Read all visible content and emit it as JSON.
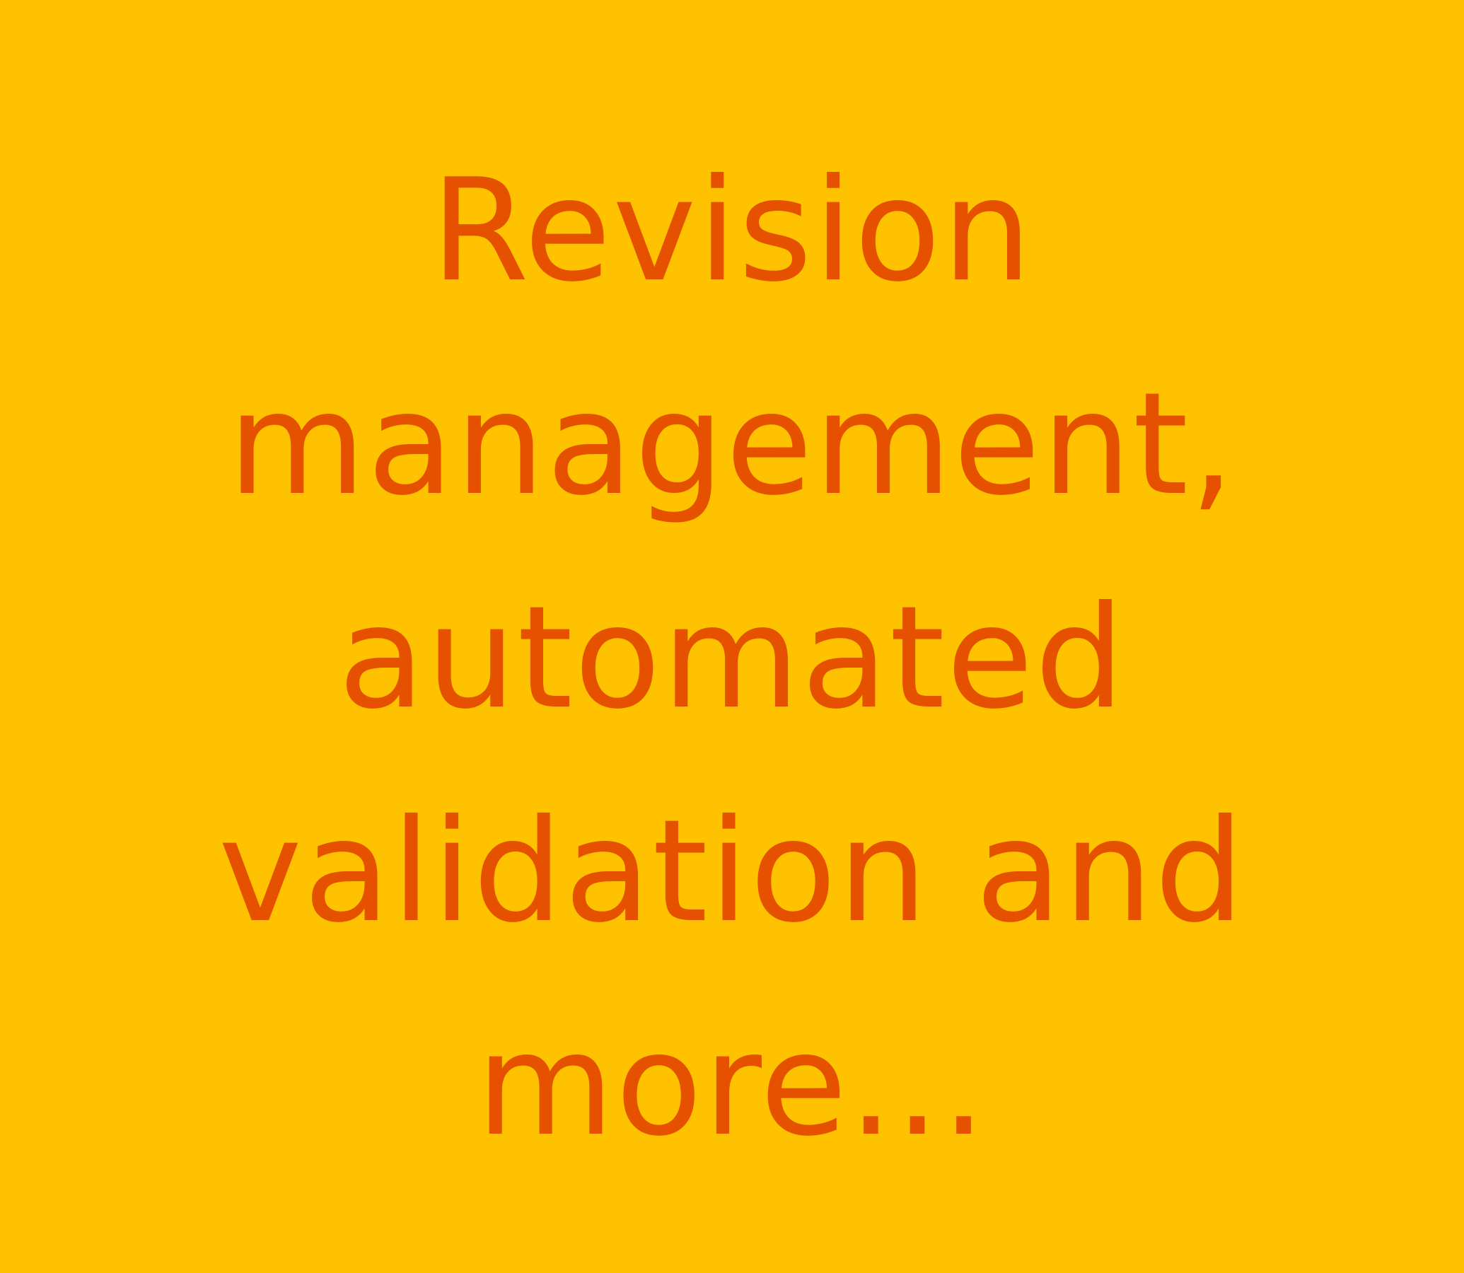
{
  "slide": {
    "background_color": "#FFC200",
    "text_color": "#E65100",
    "lines": [
      "Revision",
      "management,",
      "automated",
      "validation and",
      "more..."
    ]
  }
}
